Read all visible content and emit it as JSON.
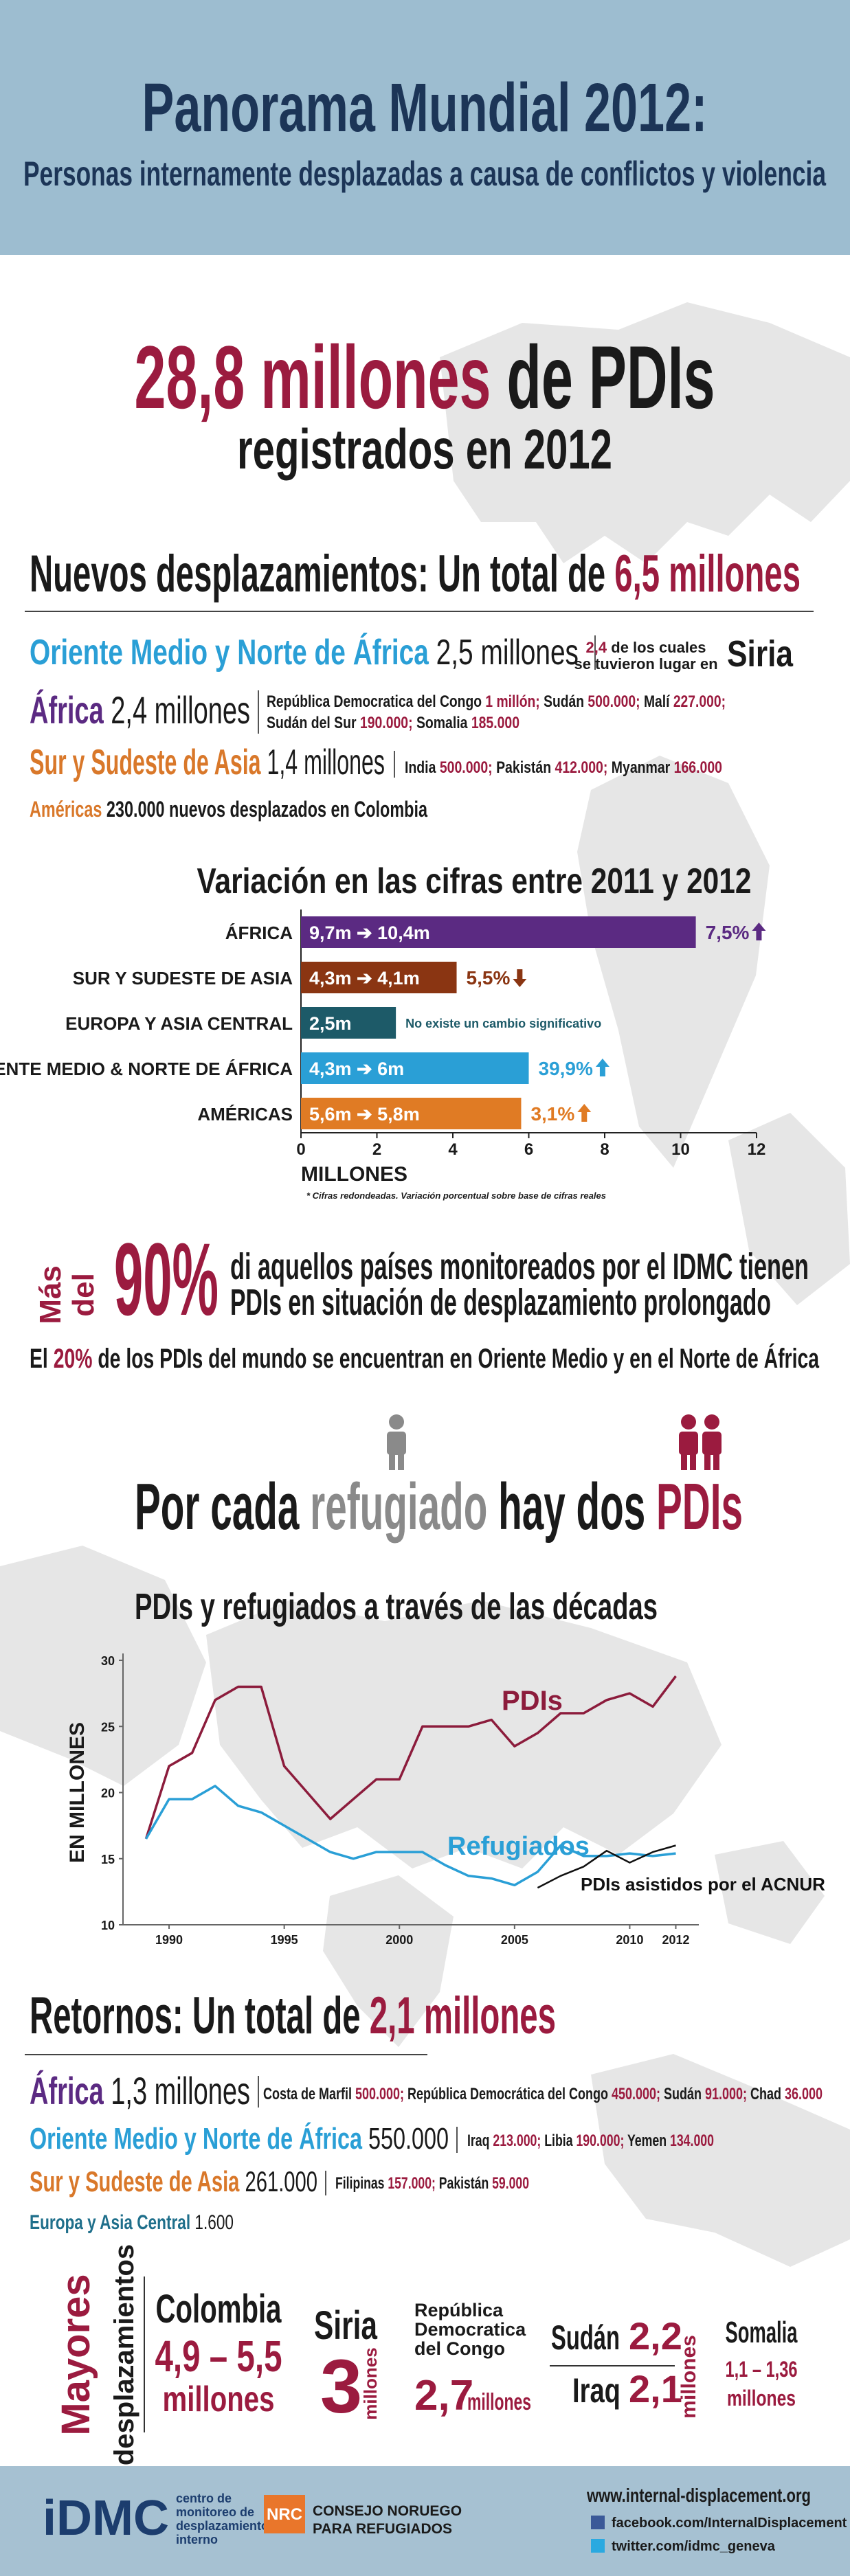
{
  "header": {
    "title": "Panorama Mundial 2012:",
    "subtitle": "Personas internamente desplazadas a causa de conflictos y violencia"
  },
  "headline": {
    "figure": "28,8 millones",
    "text": "de PDIs",
    "subtitle": "registrados en 2012"
  },
  "new_displacements": {
    "title": "Nuevos desplazamientos: Un total de",
    "total": "6,5 millones",
    "mena": {
      "name": "Oriente Medio y Norte de África",
      "figure": "2,5 millones",
      "detail_figure": "2,4",
      "detail_text_1": "de los cuales",
      "detail_text_2": "se tuvieron lugar en",
      "detail_country": "Siria"
    },
    "africa": {
      "name": "África",
      "figure": "2,4 millones",
      "details": [
        {
          "country": "República Democratica del Congo",
          "figure": "1 millón;"
        },
        {
          "country": "Sudán",
          "figure": "500.000;"
        },
        {
          "country": "Malí",
          "figure": "227.000;"
        },
        {
          "country": "Sudán del Sur",
          "figure": "190.000;"
        },
        {
          "country": "Somalia",
          "figure": "185.000"
        }
      ]
    },
    "asia": {
      "name": "Sur y Sudeste de Asia",
      "figure": "1,4 millones",
      "details": [
        {
          "country": "India",
          "figure": "500.000;"
        },
        {
          "country": "Pakistán",
          "figure": "412.000;"
        },
        {
          "country": "Myanmar",
          "figure": "166.000"
        }
      ]
    },
    "americas": {
      "name": "Américas",
      "figure": "230.000",
      "text": "nuevos desplazados en Colombia"
    }
  },
  "chart_data": [
    {
      "type": "bar",
      "title": "Variación en las cifras entre 2011 y 2012",
      "categories": [
        "ÁFRICA",
        "SUR Y SUDESTE DE ASIA",
        "EUROPA Y ASIA CENTRAL",
        "ORIENTE MEDIO & NORTE DE ÁFRICA",
        "AMÉRICAS"
      ],
      "values": [
        10.4,
        4.1,
        2.5,
        6,
        5.8
      ],
      "value_labels": [
        "9,7m ➔ 10,4m",
        "4,3m ➔ 4,1m",
        "2,5m",
        "4,3m ➔ 6m",
        "5,6m ➔ 5,8m"
      ],
      "change": [
        7.5,
        -5.5,
        null,
        39.9,
        3.1
      ],
      "change_labels": [
        "7,5%",
        "5,5%",
        "No existe un cambio significativo",
        "39,9%",
        "3,1%"
      ],
      "colors": [
        "#5b2a82",
        "#8a3512",
        "#1d5a68",
        "#2a9fd6",
        "#e07b24"
      ],
      "xlim": [
        0,
        12
      ],
      "xticks": [
        0,
        2,
        4,
        6,
        8,
        10,
        12
      ],
      "xlabel": "MILLONES",
      "note": "* Cifras redondeadas. Variación porcentual sobre base de cifras reales"
    },
    {
      "type": "line",
      "title": "PDIs y refugiados a través de las décadas",
      "x": [
        1989,
        1990,
        1991,
        1992,
        1993,
        1994,
        1995,
        1996,
        1997,
        1998,
        1999,
        2000,
        2001,
        2002,
        2003,
        2004,
        2005,
        2006,
        2007,
        2008,
        2009,
        2010,
        2011,
        2012
      ],
      "series": [
        {
          "name": "PDIs",
          "color": "#8c1c3c",
          "values": [
            16.5,
            22,
            23,
            27,
            28,
            28,
            22,
            20,
            18,
            19.5,
            21,
            21,
            25,
            25,
            25,
            25.5,
            23.5,
            24.5,
            26,
            26,
            27,
            27.5,
            26.5,
            28.8
          ]
        },
        {
          "name": "Refugiados",
          "color": "#2a9fd6",
          "values": [
            16.5,
            19.5,
            19.5,
            20.5,
            19,
            18.5,
            17.5,
            16.5,
            15.5,
            15,
            15.5,
            15.5,
            15.5,
            14.5,
            13.7,
            13.5,
            13,
            14,
            16,
            15.2,
            15.2,
            15.4,
            15.2,
            15.4
          ]
        },
        {
          "name": "PDIs asistidos por el ACNUR",
          "color": "#111111",
          "values": [
            null,
            null,
            null,
            null,
            null,
            null,
            null,
            null,
            null,
            null,
            null,
            null,
            null,
            null,
            null,
            null,
            null,
            12.8,
            13.7,
            14.4,
            15.6,
            14.7,
            15.5,
            16
          ]
        }
      ],
      "xlim": [
        1988,
        2013
      ],
      "xticks": [
        1990,
        1995,
        2000,
        2005,
        2010,
        2012
      ],
      "ylim": [
        10,
        30
      ],
      "yticks": [
        10,
        15,
        20,
        25,
        30
      ],
      "ylabel": "EN MILLONES",
      "grid": false
    }
  ],
  "protracted": {
    "prefix_1": "Más",
    "prefix_2": "del",
    "figure": "90%",
    "line_1": "di aquellos países monitoreados por el IDMC tienen",
    "line_2": "PDIs en situación de desplazamiento prolongado"
  },
  "share": {
    "start": "El",
    "figure": "20%",
    "rest": "de los PDIs del mundo se encuentran en Oriente Medio y en el Norte de África"
  },
  "ratio": {
    "start": "Por cada",
    "refugee": "refugiado",
    "middle": "hay dos",
    "idps": "PDIs"
  },
  "returns": {
    "title": "Retornos: Un total de",
    "total": "2,1 millones",
    "africa": {
      "name": "África",
      "figure": "1,3 millones",
      "details": [
        {
          "country": "Costa de Marfil",
          "figure": "500.000;"
        },
        {
          "country": "República Democrática del Congo",
          "figure": "450.000;"
        },
        {
          "country": "Sudán",
          "figure": "91.000;"
        },
        {
          "country": "Chad",
          "figure": "36.000"
        }
      ]
    },
    "mena": {
      "name": "Oriente Medio y Norte de África",
      "figure": "550.000",
      "details": [
        {
          "country": "Iraq",
          "figure": "213.000;"
        },
        {
          "country": "Libia",
          "figure": "190.000;"
        },
        {
          "country": "Yemen",
          "figure": "134.000"
        }
      ]
    },
    "asia": {
      "name": "Sur y Sudeste de Asia",
      "figure": "261.000",
      "details": [
        {
          "country": "Filipinas",
          "figure": "157.000;"
        },
        {
          "country": "Pakistán",
          "figure": "59.000"
        }
      ]
    },
    "europe": {
      "name": "Europa y Asia Central",
      "figure": "1.600"
    }
  },
  "largest": {
    "title_1": "Mayores",
    "title_2": "desplazamientos",
    "colombia": {
      "name": "Colombia",
      "figure": "4,9 – 5,5",
      "unit": "millones"
    },
    "syria": {
      "name": "Siria",
      "figure": "3",
      "unit": "millones"
    },
    "drc": {
      "name_lines": [
        "República",
        "Democratica",
        "del Congo"
      ],
      "figure": "2,7",
      "unit": "millones"
    },
    "sudan_iraq": {
      "names": [
        "Sudán",
        "Iraq"
      ],
      "figures": [
        "2,2",
        "2,1"
      ],
      "unit": "millones"
    },
    "somalia": {
      "name": "Somalia",
      "figure": "1,1 – 1,36",
      "unit": "millones"
    }
  },
  "footer": {
    "idmc_logo": "iDMC",
    "idmc_lines": [
      "centro de",
      "monitoreo de",
      "desplazamiento",
      "interno"
    ],
    "nrc_logo": "NRC",
    "nrc_lines": [
      "CONSEJO NORUEGO",
      "PARA REFUGIADOS"
    ],
    "website": "www.internal-displacement.org",
    "facebook": "facebook.com/InternalDisplacement",
    "twitter": "twitter.com/idmc_geneva"
  }
}
